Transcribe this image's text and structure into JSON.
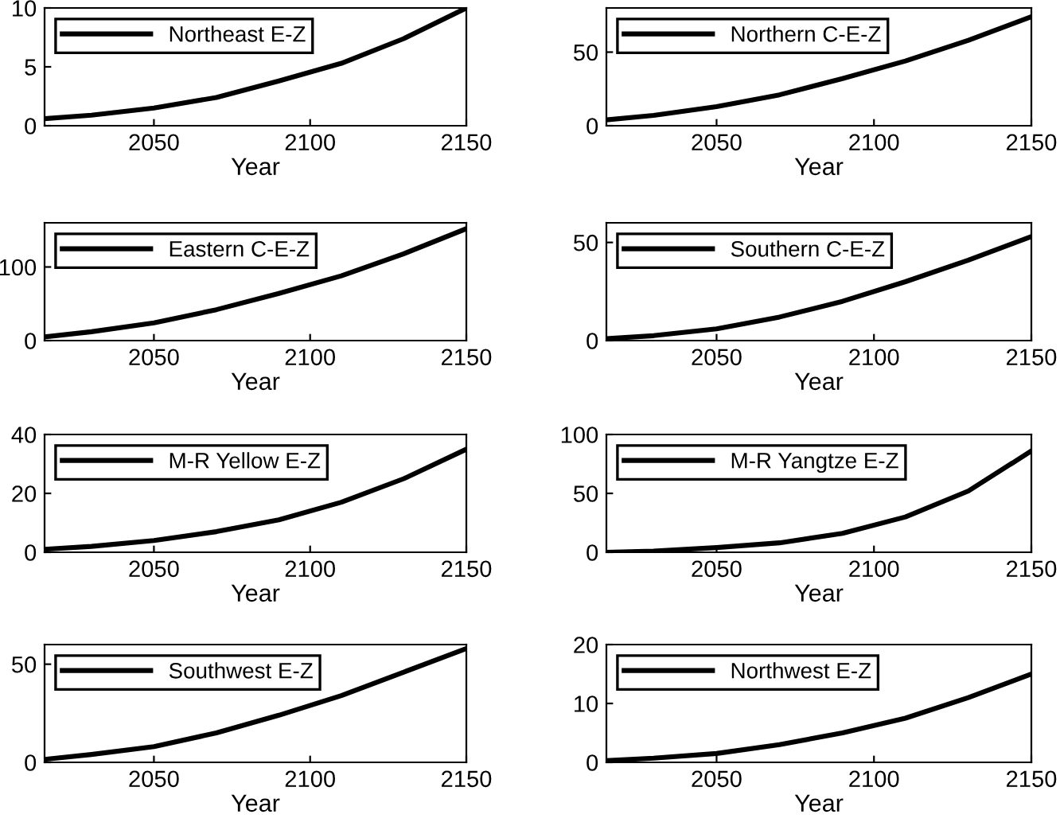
{
  "chart_data": [
    {
      "type": "line",
      "xlabel": "Year",
      "x": [
        2015,
        2030,
        2050,
        2070,
        2090,
        2110,
        2130,
        2150
      ],
      "series": [
        {
          "name": "Northeast E-Z",
          "color": "#000000",
          "values": [
            0.6,
            0.9,
            1.5,
            2.4,
            3.8,
            5.3,
            7.4,
            10
          ]
        }
      ],
      "xlim": [
        2015,
        2150
      ],
      "xticks": [
        2050,
        2100,
        2150
      ],
      "ylim": [
        0,
        10
      ],
      "yticks": [
        0,
        5,
        10
      ],
      "legend": "top left",
      "grid": false
    },
    {
      "type": "line",
      "xlabel": "Year",
      "x": [
        2015,
        2030,
        2050,
        2070,
        2090,
        2110,
        2130,
        2150
      ],
      "series": [
        {
          "name": "Northern C-E-Z",
          "color": "#000000",
          "values": [
            4,
            7,
            13,
            21,
            32,
            44,
            58,
            74
          ]
        }
      ],
      "xlim": [
        2015,
        2150
      ],
      "xticks": [
        2050,
        2100,
        2150
      ],
      "ylim": [
        0,
        80
      ],
      "yticks": [
        0,
        50
      ],
      "legend": "top left",
      "grid": false
    },
    {
      "type": "line",
      "xlabel": "Year",
      "x": [
        2015,
        2030,
        2050,
        2070,
        2090,
        2110,
        2130,
        2150
      ],
      "series": [
        {
          "name": "Eastern C-E-Z",
          "color": "#000000",
          "values": [
            5,
            12,
            24,
            42,
            64,
            88,
            118,
            152
          ]
        }
      ],
      "xlim": [
        2015,
        2150
      ],
      "xticks": [
        2050,
        2100,
        2150
      ],
      "ylim": [
        0,
        160
      ],
      "yticks": [
        0,
        100
      ],
      "legend": "top left",
      "grid": false
    },
    {
      "type": "line",
      "xlabel": "Year",
      "x": [
        2015,
        2030,
        2050,
        2070,
        2090,
        2110,
        2130,
        2150
      ],
      "series": [
        {
          "name": "Southern C-E-Z",
          "color": "#000000",
          "values": [
            1,
            2.5,
            6,
            12,
            20,
            30,
            41,
            53
          ]
        }
      ],
      "xlim": [
        2015,
        2150
      ],
      "xticks": [
        2050,
        2100,
        2150
      ],
      "ylim": [
        0,
        60
      ],
      "yticks": [
        0,
        50
      ],
      "legend": "top left",
      "grid": false
    },
    {
      "type": "line",
      "xlabel": "Year",
      "x": [
        2015,
        2030,
        2050,
        2070,
        2090,
        2110,
        2130,
        2150
      ],
      "series": [
        {
          "name": "M-R Yellow E-Z",
          "color": "#000000",
          "values": [
            1,
            2,
            4,
            7,
            11,
            17,
            25,
            35
          ]
        }
      ],
      "xlim": [
        2015,
        2150
      ],
      "xticks": [
        2050,
        2100,
        2150
      ],
      "ylim": [
        0,
        40
      ],
      "yticks": [
        0,
        20,
        40
      ],
      "legend": "top left",
      "grid": false
    },
    {
      "type": "line",
      "xlabel": "Year",
      "x": [
        2015,
        2030,
        2050,
        2070,
        2090,
        2110,
        2130,
        2150
      ],
      "series": [
        {
          "name": "M-R Yangtze E-Z",
          "color": "#000000",
          "values": [
            0,
            1,
            4,
            8,
            16,
            30,
            52,
            86
          ]
        }
      ],
      "xlim": [
        2015,
        2150
      ],
      "xticks": [
        2050,
        2100,
        2150
      ],
      "ylim": [
        0,
        100
      ],
      "yticks": [
        0,
        50,
        100
      ],
      "legend": "top left",
      "grid": false
    },
    {
      "type": "line",
      "xlabel": "Year",
      "x": [
        2015,
        2030,
        2050,
        2070,
        2090,
        2110,
        2130,
        2150
      ],
      "series": [
        {
          "name": "Southwest E-Z",
          "color": "#000000",
          "values": [
            1.5,
            4,
            8,
            15,
            24,
            34,
            46,
            58
          ]
        }
      ],
      "xlim": [
        2015,
        2150
      ],
      "xticks": [
        2050,
        2100,
        2150
      ],
      "ylim": [
        0,
        60
      ],
      "yticks": [
        0,
        50
      ],
      "legend": "top left",
      "grid": false
    },
    {
      "type": "line",
      "xlabel": "Year",
      "x": [
        2015,
        2030,
        2050,
        2070,
        2090,
        2110,
        2130,
        2150
      ],
      "series": [
        {
          "name": "Northwest E-Z",
          "color": "#000000",
          "values": [
            0.3,
            0.7,
            1.5,
            3,
            5,
            7.5,
            11,
            15
          ]
        }
      ],
      "xlim": [
        2015,
        2150
      ],
      "xticks": [
        2050,
        2100,
        2150
      ],
      "ylim": [
        0,
        20
      ],
      "yticks": [
        0,
        10,
        20
      ],
      "legend": "top left",
      "grid": false
    }
  ]
}
